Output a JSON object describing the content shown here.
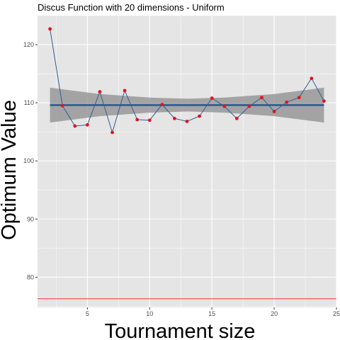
{
  "chart_data": {
    "type": "line",
    "title": "Discus Function with 20 dimensions -  Uniform",
    "xlabel": "Tournament size",
    "ylabel": "Optimum Value",
    "xlim": [
      1.0,
      25.0
    ],
    "ylim": [
      74.8,
      125.0
    ],
    "x_ticks": [
      5,
      10,
      15,
      20,
      25
    ],
    "y_ticks": [
      80,
      90,
      100,
      110,
      120
    ],
    "grid": true,
    "legend": "none",
    "x": [
      2,
      3,
      4,
      5,
      6,
      7,
      8,
      9,
      10,
      11,
      12,
      13,
      14,
      15,
      16,
      17,
      18,
      19,
      20,
      21,
      22,
      23,
      24
    ],
    "series": [
      {
        "values": [
          122.7,
          109.5,
          106.0,
          106.2,
          111.9,
          104.9,
          112.1,
          107.1,
          107.0,
          109.7,
          107.3,
          106.8,
          107.7,
          110.8,
          109.4,
          107.3,
          109.4,
          110.9,
          108.5,
          110.1,
          110.9,
          114.2,
          110.3
        ]
      }
    ],
    "mean_line": 109.6,
    "confidence_band": {
      "x": [
        2,
        6,
        10,
        13,
        16,
        20,
        24
      ],
      "lower": [
        106.6,
        107.7,
        108.3,
        108.5,
        108.3,
        107.7,
        106.6
      ],
      "upper": [
        112.6,
        111.5,
        110.9,
        110.7,
        110.9,
        111.5,
        112.6
      ]
    },
    "reference_line": 76.3,
    "colors": {
      "panel": "#e5e5e5",
      "grid": "#ffffff",
      "series_line": "#2f5f93",
      "points": "#e0141e",
      "mean_line": "#1f4e94",
      "band": "#8c8c8c",
      "reference_line": "#ff3030"
    }
  }
}
